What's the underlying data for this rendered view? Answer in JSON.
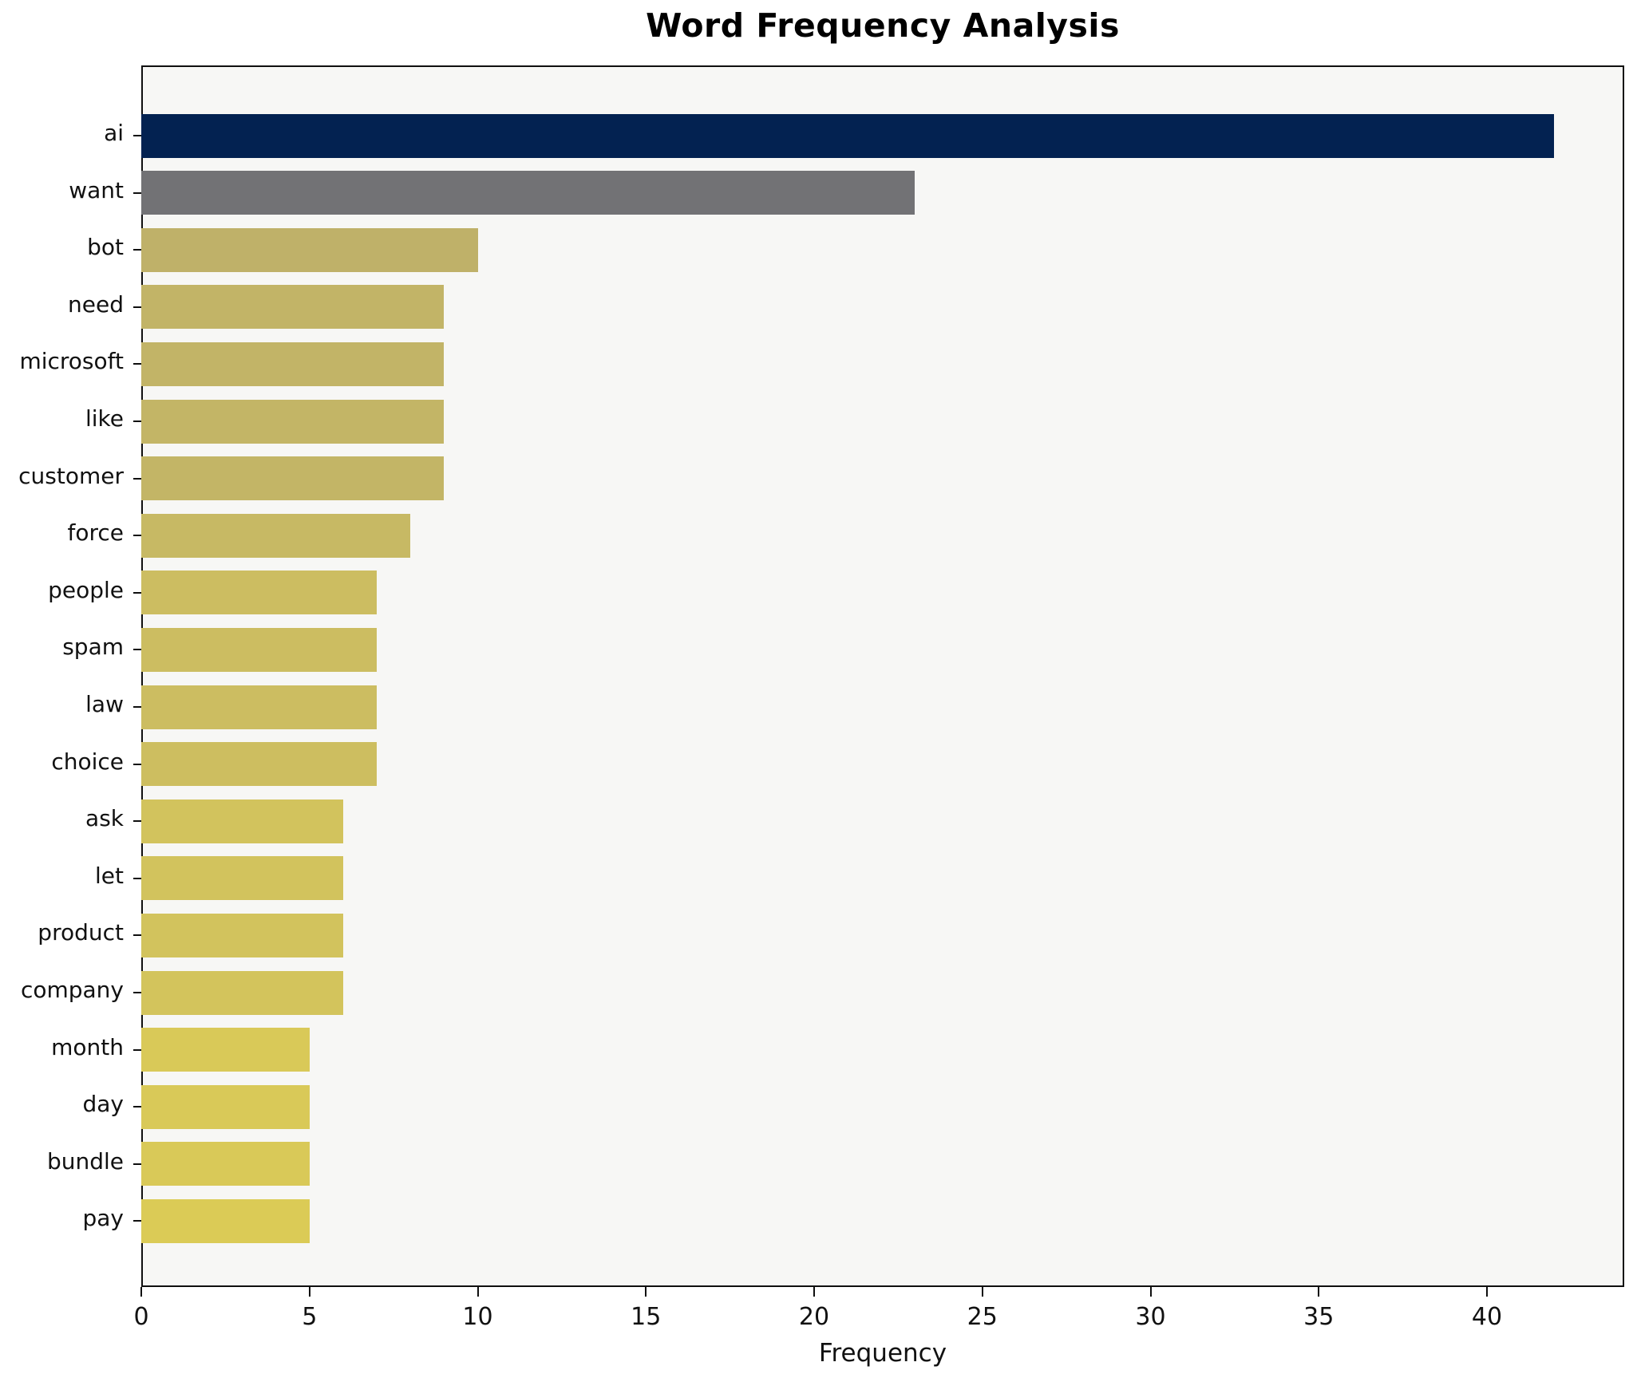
{
  "title": "Word Frequency Analysis",
  "xlabel": "Frequency",
  "chart_data": {
    "type": "bar",
    "orientation": "horizontal",
    "title": "Word Frequency Analysis",
    "xlabel": "Frequency",
    "ylabel": "",
    "xlim": [
      0,
      44
    ],
    "x_ticks": [
      0,
      5,
      10,
      15,
      20,
      25,
      30,
      35,
      40
    ],
    "grid": false,
    "legend": "none",
    "plot_background": "#f7f7f5",
    "figure_background": "#ffffff",
    "categories": [
      "ai",
      "want",
      "bot",
      "need",
      "microsoft",
      "like",
      "customer",
      "force",
      "people",
      "spam",
      "law",
      "choice",
      "ask",
      "let",
      "product",
      "company",
      "month",
      "day",
      "bundle",
      "pay"
    ],
    "values": [
      42,
      23,
      10,
      9,
      9,
      9,
      9,
      8,
      7,
      7,
      7,
      7,
      6,
      6,
      6,
      6,
      5,
      5,
      5,
      5
    ],
    "bar_colors": [
      "#032251",
      "#727275",
      "#bfb169",
      "#c2b467",
      "#c2b467",
      "#c3b566",
      "#c3b566",
      "#c7b964",
      "#ccbd61",
      "#ccbd61",
      "#ccbd61",
      "#cdbe60",
      "#d2c35d",
      "#d2c35d",
      "#d2c35d",
      "#d3c45c",
      "#d9c958",
      "#d9c958",
      "#d9c958",
      "#dbcb56"
    ]
  }
}
